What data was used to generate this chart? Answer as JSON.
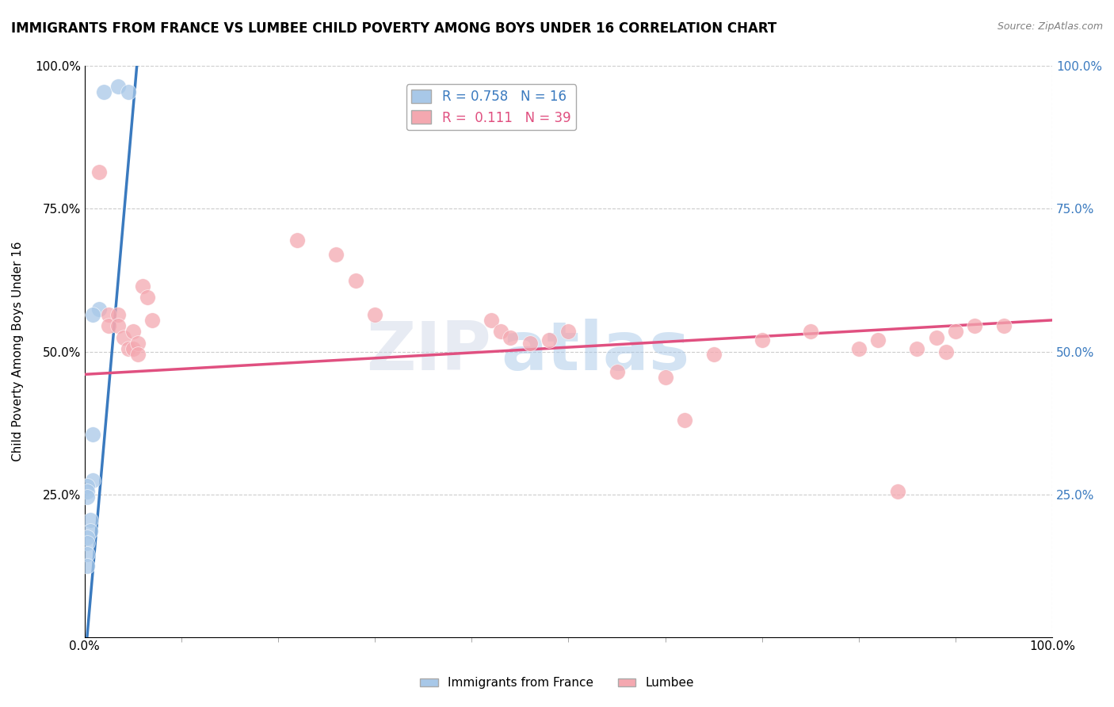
{
  "title": "IMMIGRANTS FROM FRANCE VS LUMBEE CHILD POVERTY AMONG BOYS UNDER 16 CORRELATION CHART",
  "source": "Source: ZipAtlas.com",
  "ylabel": "Child Poverty Among Boys Under 16",
  "xlabel": "",
  "xlim": [
    0.0,
    1.0
  ],
  "ylim": [
    0.0,
    1.0
  ],
  "legend_r1": "R = 0.758",
  "legend_n1": "N = 16",
  "legend_r2": "R =  0.111",
  "legend_n2": "N = 39",
  "blue_color": "#a8c8e8",
  "pink_color": "#f4a8b0",
  "blue_line_color": "#3a7abf",
  "pink_line_color": "#e05080",
  "watermark_zip": "ZIP",
  "watermark_atlas": "atlas",
  "blue_scatter_x": [
    0.02,
    0.035,
    0.045,
    0.015,
    0.008,
    0.008,
    0.008,
    0.003,
    0.003,
    0.003,
    0.006,
    0.006,
    0.003,
    0.003,
    0.003,
    0.003
  ],
  "blue_scatter_y": [
    0.955,
    0.965,
    0.955,
    0.575,
    0.565,
    0.355,
    0.275,
    0.265,
    0.255,
    0.245,
    0.205,
    0.185,
    0.175,
    0.165,
    0.145,
    0.125
  ],
  "pink_scatter_x": [
    0.015,
    0.025,
    0.025,
    0.035,
    0.035,
    0.04,
    0.045,
    0.05,
    0.05,
    0.055,
    0.055,
    0.06,
    0.065,
    0.07,
    0.22,
    0.26,
    0.28,
    0.3,
    0.42,
    0.43,
    0.44,
    0.46,
    0.48,
    0.5,
    0.55,
    0.6,
    0.62,
    0.65,
    0.7,
    0.75,
    0.8,
    0.82,
    0.84,
    0.86,
    0.88,
    0.89,
    0.9,
    0.92,
    0.95
  ],
  "pink_scatter_y": [
    0.815,
    0.565,
    0.545,
    0.565,
    0.545,
    0.525,
    0.505,
    0.535,
    0.505,
    0.515,
    0.495,
    0.615,
    0.595,
    0.555,
    0.695,
    0.67,
    0.625,
    0.565,
    0.555,
    0.535,
    0.525,
    0.515,
    0.52,
    0.535,
    0.465,
    0.455,
    0.38,
    0.495,
    0.52,
    0.535,
    0.505,
    0.52,
    0.255,
    0.505,
    0.525,
    0.5,
    0.535,
    0.545,
    0.545
  ],
  "blue_line_x": [
    0.0,
    0.055
  ],
  "blue_line_y": [
    -0.05,
    1.02
  ],
  "pink_line_x": [
    0.0,
    1.0
  ],
  "pink_line_y": [
    0.46,
    0.555
  ]
}
